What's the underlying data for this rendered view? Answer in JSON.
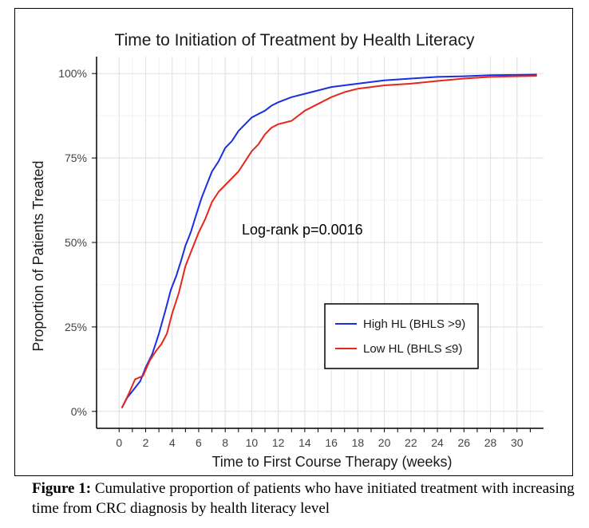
{
  "chart_data": {
    "type": "line",
    "title": "Time to Initiation of Treatment by Health Literacy",
    "xlabel": "Time to First Course Therapy (weeks)",
    "ylabel": "Proportion of Patients Treated",
    "xlim": [
      -1.7,
      32
    ],
    "ylim": [
      -0.05,
      1.05
    ],
    "x_ticks": [
      0,
      2,
      4,
      6,
      8,
      10,
      12,
      14,
      16,
      18,
      20,
      22,
      24,
      26,
      28,
      30
    ],
    "y_ticks": [
      0,
      0.25,
      0.5,
      0.75,
      1.0
    ],
    "y_tick_labels": [
      "0%",
      "25%",
      "50%",
      "75%",
      "100%"
    ],
    "grid": true,
    "legend_position": "right-middle",
    "annotation": "Log-rank p=0.0016",
    "series": [
      {
        "name": "High HL (BHLS >9)",
        "color": "#1a2fe0",
        "points": [
          [
            0.2,
            0.01
          ],
          [
            0.6,
            0.04
          ],
          [
            1.0,
            0.06
          ],
          [
            1.6,
            0.09
          ],
          [
            2.0,
            0.13
          ],
          [
            2.5,
            0.17
          ],
          [
            3.0,
            0.23
          ],
          [
            3.5,
            0.3
          ],
          [
            3.9,
            0.36
          ],
          [
            4.3,
            0.4
          ],
          [
            4.7,
            0.45
          ],
          [
            5.0,
            0.49
          ],
          [
            5.4,
            0.53
          ],
          [
            5.8,
            0.58
          ],
          [
            6.2,
            0.63
          ],
          [
            6.6,
            0.67
          ],
          [
            7.0,
            0.71
          ],
          [
            7.5,
            0.74
          ],
          [
            8.0,
            0.78
          ],
          [
            8.5,
            0.8
          ],
          [
            9.0,
            0.83
          ],
          [
            9.5,
            0.85
          ],
          [
            10.0,
            0.87
          ],
          [
            10.5,
            0.88
          ],
          [
            11.0,
            0.89
          ],
          [
            11.5,
            0.905
          ],
          [
            12.0,
            0.915
          ],
          [
            13.0,
            0.93
          ],
          [
            14.0,
            0.94
          ],
          [
            15.0,
            0.95
          ],
          [
            16.0,
            0.96
          ],
          [
            17.0,
            0.965
          ],
          [
            18.0,
            0.97
          ],
          [
            20.0,
            0.98
          ],
          [
            22.0,
            0.985
          ],
          [
            24.0,
            0.99
          ],
          [
            26.0,
            0.992
          ],
          [
            28.0,
            0.995
          ],
          [
            30.0,
            0.996
          ],
          [
            31.5,
            0.997
          ]
        ]
      },
      {
        "name": "Low HL (BHLS ≤9)",
        "color": "#e8261a",
        "points": [
          [
            0.2,
            0.01
          ],
          [
            0.7,
            0.05
          ],
          [
            1.2,
            0.095
          ],
          [
            1.8,
            0.105
          ],
          [
            2.3,
            0.15
          ],
          [
            2.8,
            0.18
          ],
          [
            3.2,
            0.2
          ],
          [
            3.6,
            0.23
          ],
          [
            4.0,
            0.29
          ],
          [
            4.5,
            0.35
          ],
          [
            5.0,
            0.43
          ],
          [
            5.5,
            0.48
          ],
          [
            6.0,
            0.53
          ],
          [
            6.5,
            0.57
          ],
          [
            7.0,
            0.62
          ],
          [
            7.5,
            0.65
          ],
          [
            8.0,
            0.67
          ],
          [
            8.5,
            0.69
          ],
          [
            9.0,
            0.71
          ],
          [
            9.5,
            0.74
          ],
          [
            10.0,
            0.77
          ],
          [
            10.5,
            0.79
          ],
          [
            11.0,
            0.82
          ],
          [
            11.5,
            0.84
          ],
          [
            12.0,
            0.85
          ],
          [
            13.0,
            0.86
          ],
          [
            14.0,
            0.89
          ],
          [
            15.0,
            0.91
          ],
          [
            16.0,
            0.93
          ],
          [
            17.0,
            0.945
          ],
          [
            18.0,
            0.955
          ],
          [
            20.0,
            0.965
          ],
          [
            22.0,
            0.97
          ],
          [
            24.0,
            0.978
          ],
          [
            26.0,
            0.985
          ],
          [
            28.0,
            0.99
          ],
          [
            30.0,
            0.992
          ],
          [
            31.5,
            0.993
          ]
        ]
      }
    ]
  },
  "caption": {
    "label": "Figure 1:",
    "text": " Cumulative proportion of patients who have initiated treatment with increasing time from CRC diagnosis by health literacy level"
  }
}
